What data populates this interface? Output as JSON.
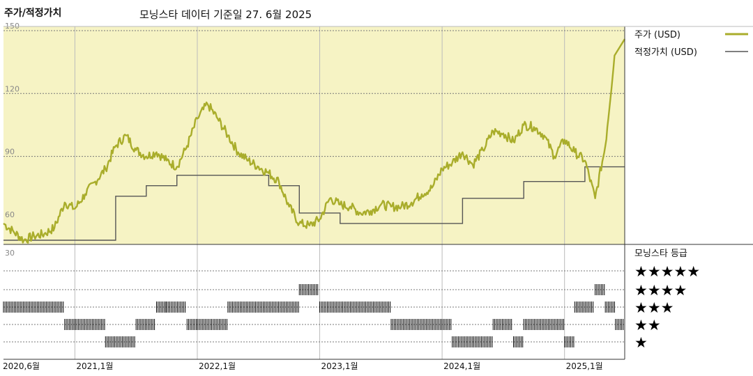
{
  "header": {
    "title": "주가/적정가치",
    "subtitle": "모닝스타 데이터 기준일 27. 6월 2025"
  },
  "legend": {
    "price": "주가 (USD)",
    "fair_value": "적정가치 (USD)",
    "rating_title": "모닝스타 등급"
  },
  "colors": {
    "price": "#a9ad2b",
    "fair_value": "#555555",
    "panel_bg": "#f6f3c4",
    "rating_bar": "#000000"
  },
  "chart_data": [
    {
      "type": "line",
      "title": "",
      "xlabel": "",
      "ylabel": "",
      "x_ticks": [
        "2020,6월",
        "2021,1월",
        "2022,1월",
        "2023,1월",
        "2024,1월",
        "2025,1월"
      ],
      "y_ticks": [
        60,
        90,
        120,
        150
      ],
      "ylim": [
        48,
        152
      ],
      "grid": true,
      "series": [
        {
          "name": "주가 (USD)",
          "points": [
            [
              "2020-06",
              58
            ],
            [
              "2020-07",
              54
            ],
            [
              "2020-08",
              50
            ],
            [
              "2020-09",
              52
            ],
            [
              "2020-10",
              53
            ],
            [
              "2020-11",
              56
            ],
            [
              "2020-12",
              68
            ],
            [
              "2021-01",
              65
            ],
            [
              "2021-02",
              72
            ],
            [
              "2021-03",
              78
            ],
            [
              "2021-04",
              84
            ],
            [
              "2021-05",
              95
            ],
            [
              "2021-06",
              100
            ],
            [
              "2021-07",
              93
            ],
            [
              "2021-08",
              90
            ],
            [
              "2021-09",
              92
            ],
            [
              "2021-10",
              88
            ],
            [
              "2021-11",
              85
            ],
            [
              "2021-12",
              95
            ],
            [
              "2022-01",
              108
            ],
            [
              "2022-02",
              115
            ],
            [
              "2022-03",
              108
            ],
            [
              "2022-04",
              100
            ],
            [
              "2022-05",
              92
            ],
            [
              "2022-06",
              88
            ],
            [
              "2022-07",
              85
            ],
            [
              "2022-08",
              82
            ],
            [
              "2022-09",
              78
            ],
            [
              "2022-10",
              66
            ],
            [
              "2022-11",
              58
            ],
            [
              "2022-12",
              57
            ],
            [
              "2023-01",
              60
            ],
            [
              "2023-02",
              70
            ],
            [
              "2023-03",
              67
            ],
            [
              "2023-04",
              66
            ],
            [
              "2023-05",
              63
            ],
            [
              "2023-06",
              64
            ],
            [
              "2023-07",
              67
            ],
            [
              "2023-08",
              66
            ],
            [
              "2023-09",
              66
            ],
            [
              "2023-10",
              68
            ],
            [
              "2023-11",
              72
            ],
            [
              "2023-12",
              75
            ],
            [
              "2024-01",
              84
            ],
            [
              "2024-02",
              87
            ],
            [
              "2024-03",
              92
            ],
            [
              "2024-04",
              86
            ],
            [
              "2024-05",
              93
            ],
            [
              "2024-06",
              102
            ],
            [
              "2024-07",
              101
            ],
            [
              "2024-08",
              97
            ],
            [
              "2024-09",
              105
            ],
            [
              "2024-10",
              104
            ],
            [
              "2024-11",
              100
            ],
            [
              "2024-12",
              90
            ],
            [
              "2025-01",
              98
            ],
            [
              "2025-02",
              92
            ],
            [
              "2025-03",
              88
            ],
            [
              "2025-04",
              70
            ],
            [
              "2025-05",
              95
            ],
            [
              "2025-06",
              143
            ]
          ]
        },
        {
          "name": "적정가치 (USD)",
          "points": [
            [
              "2020-06",
              50
            ],
            [
              "2021-05",
              50
            ],
            [
              "2021-05",
              71
            ],
            [
              "2021-08",
              71
            ],
            [
              "2021-08",
              76
            ],
            [
              "2021-11",
              76
            ],
            [
              "2021-11",
              81
            ],
            [
              "2022-08",
              81
            ],
            [
              "2022-08",
              76
            ],
            [
              "2022-11",
              76
            ],
            [
              "2022-11",
              63
            ],
            [
              "2023-03",
              63
            ],
            [
              "2023-03",
              58
            ],
            [
              "2024-03",
              58
            ],
            [
              "2024-03",
              70
            ],
            [
              "2024-09",
              70
            ],
            [
              "2024-09",
              78
            ],
            [
              "2025-03",
              78
            ],
            [
              "2025-03",
              85
            ],
            [
              "2025-06",
              85
            ]
          ]
        }
      ]
    },
    {
      "type": "bar",
      "title": "모닝스타 등급",
      "y_ticks": [
        30
      ],
      "categories": [
        "★★★★★",
        "★★★★",
        "★★★",
        "★★",
        "★"
      ],
      "rating_periods": [
        {
          "stars": 3,
          "from": "2020-06",
          "to": "2020-11"
        },
        {
          "stars": 2,
          "from": "2020-12",
          "to": "2021-03"
        },
        {
          "stars": 1,
          "from": "2021-04",
          "to": "2021-06"
        },
        {
          "stars": 2,
          "from": "2021-07",
          "to": "2021-08"
        },
        {
          "stars": 3,
          "from": "2021-09",
          "to": "2021-09"
        },
        {
          "stars": 3,
          "from": "2021-10",
          "to": "2021-11"
        },
        {
          "stars": 2,
          "from": "2021-12",
          "to": "2022-03"
        },
        {
          "stars": 3,
          "from": "2022-04",
          "to": "2022-10"
        },
        {
          "stars": 4,
          "from": "2022-11",
          "to": "2022-12"
        },
        {
          "stars": 3,
          "from": "2023-01",
          "to": "2023-07"
        },
        {
          "stars": 2,
          "from": "2023-08",
          "to": "2024-01"
        },
        {
          "stars": 1,
          "from": "2024-02",
          "to": "2024-05"
        },
        {
          "stars": 2,
          "from": "2024-06",
          "to": "2024-07"
        },
        {
          "stars": 1,
          "from": "2024-08",
          "to": "2024-08"
        },
        {
          "stars": 2,
          "from": "2024-09",
          "to": "2024-12"
        },
        {
          "stars": 1,
          "from": "2025-01",
          "to": "2025-01"
        },
        {
          "stars": 3,
          "from": "2025-02",
          "to": "2025-03"
        },
        {
          "stars": 4,
          "from": "2025-04",
          "to": "2025-04"
        },
        {
          "stars": 3,
          "from": "2025-05",
          "to": "2025-05"
        },
        {
          "stars": 2,
          "from": "2025-06",
          "to": "2025-06"
        }
      ]
    }
  ]
}
